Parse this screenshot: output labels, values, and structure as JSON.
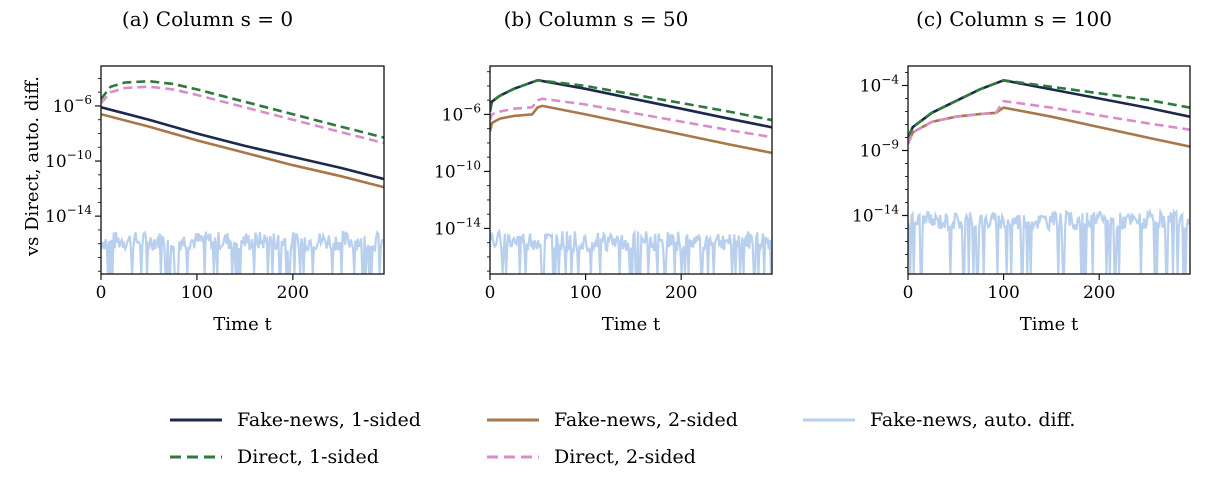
{
  "figure": {
    "ylabel": "vs Direct, auto. diff.",
    "xlabel": "Time t"
  },
  "colors": {
    "fake_news_1_sided": "#1b2a4a",
    "direct_1_sided": "#2e7a3c",
    "fake_news_2_sided": "#a8784a",
    "direct_2_sided": "#d98ec8",
    "fake_news_auto_diff": "#b8d0ee"
  },
  "legend": {
    "placement": "bottom-center",
    "entries": [
      {
        "key": "fake_news_1_sided",
        "label": "Fake-news, 1-sided",
        "dash": "solid"
      },
      {
        "key": "direct_1_sided",
        "label": "Direct, 1-sided",
        "dash": "dashed"
      },
      {
        "key": "fake_news_2_sided",
        "label": "Fake-news, 2-sided",
        "dash": "solid"
      },
      {
        "key": "direct_2_sided",
        "label": "Direct, 2-sided",
        "dash": "dashed"
      },
      {
        "key": "fake_news_auto_diff",
        "label": "Fake-news, auto. diff.",
        "dash": "solid"
      }
    ]
  },
  "chart_data": [
    {
      "type": "line",
      "title": "(a) Column s = 0",
      "xlabel": "Time t",
      "ylabel": "vs Direct, auto. diff.",
      "y_scale": "log10",
      "xlim": [
        0,
        295
      ],
      "ylim_log10": [
        -18.2,
        -3.1
      ],
      "xticks": [
        0,
        100,
        200
      ],
      "yticks_log10": [
        -6,
        -10,
        -14
      ],
      "grid": false,
      "series": [
        {
          "key": "fake_news_1_sided",
          "x": [
            0,
            50,
            100,
            150,
            200,
            250,
            295
          ],
          "log10_y": [
            -6.1,
            -7.0,
            -8.0,
            -8.9,
            -9.7,
            -10.5,
            -11.3
          ]
        },
        {
          "key": "fake_news_2_sided",
          "x": [
            0,
            50,
            100,
            150,
            200,
            250,
            295
          ],
          "log10_y": [
            -6.6,
            -7.5,
            -8.5,
            -9.4,
            -10.3,
            -11.1,
            -11.9
          ]
        },
        {
          "key": "direct_1_sided",
          "x": [
            0,
            10,
            25,
            50,
            75,
            100,
            150,
            200,
            250,
            295
          ],
          "log10_y": [
            -5.5,
            -4.6,
            -4.3,
            -4.2,
            -4.4,
            -4.8,
            -5.7,
            -6.6,
            -7.5,
            -8.3
          ]
        },
        {
          "key": "direct_2_sided",
          "x": [
            0,
            10,
            25,
            50,
            75,
            100,
            150,
            200,
            250,
            295
          ],
          "log10_y": [
            -5.8,
            -5.0,
            -4.7,
            -4.6,
            -4.8,
            -5.2,
            -6.1,
            -7.0,
            -7.9,
            -8.7
          ]
        },
        {
          "key": "fake_news_auto_diff",
          "noise": true,
          "x_range": [
            0,
            295
          ],
          "baseline_log10": -15.8,
          "dip_to_log10": -18.2
        }
      ]
    },
    {
      "type": "line",
      "title": "(b) Column s = 50",
      "xlabel": "Time t",
      "ylabel": "",
      "y_scale": "log10",
      "xlim": [
        0,
        295
      ],
      "ylim_log10": [
        -17.2,
        -2.6
      ],
      "xticks": [
        0,
        100,
        200
      ],
      "yticks_log10": [
        -6,
        -10,
        -14
      ],
      "grid": false,
      "series": [
        {
          "key": "fake_news_1_sided",
          "x": [
            0,
            2,
            10,
            25,
            50,
            100,
            150,
            200,
            250,
            295
          ],
          "log10_y": [
            -5.8,
            -5.1,
            -4.7,
            -4.2,
            -3.6,
            -4.2,
            -4.9,
            -5.6,
            -6.3,
            -6.9
          ]
        },
        {
          "key": "direct_1_sided",
          "x": [
            0,
            2,
            10,
            25,
            50,
            100,
            150,
            200,
            250,
            295
          ],
          "log10_y": [
            -5.8,
            -5.1,
            -4.7,
            -4.2,
            -3.6,
            -4.0,
            -4.6,
            -5.2,
            -5.8,
            -6.4
          ]
        },
        {
          "key": "fake_news_2_sided",
          "x": [
            0,
            2,
            10,
            25,
            44,
            50,
            55,
            100,
            150,
            200,
            250,
            295
          ],
          "log10_y": [
            -7.2,
            -6.6,
            -6.3,
            -6.1,
            -6.0,
            -5.5,
            -5.4,
            -6.0,
            -6.7,
            -7.4,
            -8.1,
            -8.7
          ]
        },
        {
          "key": "direct_2_sided",
          "x": [
            0,
            2,
            10,
            25,
            44,
            50,
            55,
            100,
            150,
            200,
            250,
            295
          ],
          "log10_y": [
            -6.4,
            -6.0,
            -5.8,
            -5.6,
            -5.5,
            -5.0,
            -4.9,
            -5.3,
            -5.9,
            -6.5,
            -7.1,
            -7.6
          ]
        },
        {
          "key": "fake_news_auto_diff",
          "noise": true,
          "x_range": [
            0,
            295
          ],
          "baseline_log10": -14.9,
          "dip_to_log10": -17.2
        }
      ]
    },
    {
      "type": "line",
      "title": "(c) Column s = 100",
      "xlabel": "Time t",
      "ylabel": "",
      "y_scale": "log10",
      "xlim": [
        0,
        295
      ],
      "ylim_log10": [
        -18.5,
        -2.5
      ],
      "xticks": [
        0,
        100,
        200
      ],
      "yticks_log10": [
        -4,
        -9,
        -14
      ],
      "grid": false,
      "series": [
        {
          "key": "fake_news_1_sided",
          "x": [
            0,
            5,
            25,
            50,
            75,
            100,
            150,
            200,
            250,
            295
          ],
          "log10_y": [
            -8.0,
            -7.2,
            -6.1,
            -5.2,
            -4.3,
            -3.6,
            -4.3,
            -5.0,
            -5.7,
            -6.4
          ]
        },
        {
          "key": "direct_1_sided",
          "x": [
            0,
            5,
            25,
            50,
            75,
            100,
            150,
            200,
            250,
            295
          ],
          "log10_y": [
            -8.0,
            -7.2,
            -6.1,
            -5.2,
            -4.3,
            -3.6,
            -4.1,
            -4.6,
            -5.1,
            -5.7
          ]
        },
        {
          "key": "fake_news_2_sided",
          "x": [
            0,
            5,
            25,
            50,
            75,
            92,
            100,
            150,
            200,
            250,
            295
          ],
          "log10_y": [
            -8.5,
            -7.6,
            -6.8,
            -6.4,
            -6.2,
            -6.1,
            -5.7,
            -6.4,
            -7.2,
            -8.0,
            -8.7
          ]
        },
        {
          "key": "direct_2_sided",
          "x": [
            0,
            5,
            25,
            50,
            75,
            92,
            100,
            150,
            200,
            250,
            295
          ],
          "log10_y": [
            -8.5,
            -7.6,
            -6.8,
            -6.4,
            -6.2,
            -6.1,
            -5.2,
            -5.7,
            -6.3,
            -6.9,
            -7.4
          ]
        },
        {
          "key": "fake_news_auto_diff",
          "noise": true,
          "x_range": [
            0,
            295
          ],
          "baseline_log10": -14.4,
          "dip_to_log10": -18.5
        }
      ]
    }
  ]
}
